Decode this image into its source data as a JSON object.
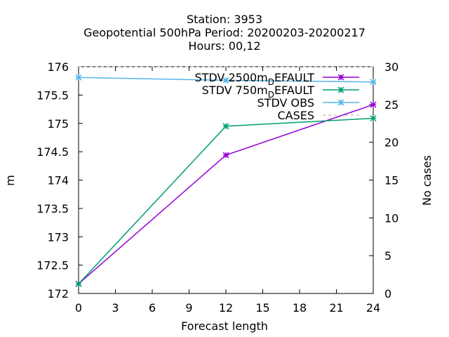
{
  "chart_data": {
    "type": "line",
    "title_lines": [
      "Station:     3953",
      "Geopotential 500hPa   Period: 20200203-20200217",
      "Hours:  00,12"
    ],
    "xlabel": "Forecast length",
    "ylabel": "m",
    "y2label": "No cases",
    "xlim": [
      0,
      24
    ],
    "ylim": [
      172,
      176
    ],
    "y2lim": [
      0,
      30
    ],
    "xticks": [
      "0",
      "3",
      "6",
      "9",
      "12",
      "15",
      "18",
      "21",
      "24"
    ],
    "yticks": [
      "172",
      "172.5",
      "173",
      "173.5",
      "174",
      "174.5",
      "175",
      "175.5",
      "176"
    ],
    "y2ticks": [
      "0",
      "5",
      "10",
      "15",
      "20",
      "25",
      "30"
    ],
    "grid": false,
    "legend_position": "top-right",
    "series": [
      {
        "name": "STDV 2500m_DEFAULT",
        "label_main": "STDV 2500m",
        "label_sub": "D",
        "label_rest": "EFAULT",
        "color": "#9400d3",
        "marker": "x-star",
        "axis": "y1",
        "x": [
          0,
          12,
          24
        ],
        "y": [
          172.17,
          174.44,
          175.33
        ]
      },
      {
        "name": "STDV 750m_DEFAULT",
        "label_main": "STDV 750m",
        "label_sub": "D",
        "label_rest": "EFAULT",
        "color": "#009e73",
        "marker": "x-star",
        "axis": "y1",
        "x": [
          0,
          12,
          24
        ],
        "y": [
          172.17,
          174.95,
          175.09
        ]
      },
      {
        "name": "STDV OBS",
        "label_main": "STDV OBS",
        "color": "#56b4e9",
        "marker": "x-star",
        "axis": "y1",
        "x": [
          0,
          12,
          24
        ],
        "y": [
          175.81,
          175.76,
          175.73
        ]
      },
      {
        "name": "CASES",
        "label_main": "CASES",
        "color": "#aaaaaa",
        "marker": "none",
        "dashed": true,
        "axis": "y2",
        "x": [
          0,
          12,
          24
        ],
        "y": [
          30,
          30,
          30
        ]
      }
    ]
  }
}
